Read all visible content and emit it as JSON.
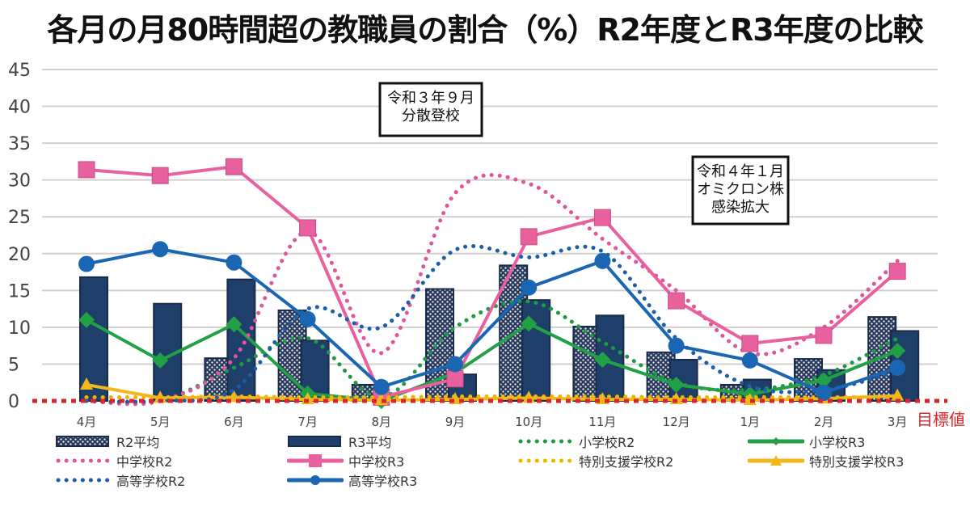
{
  "title": "各月の月80時間超の教職員の割合（%）R2年度とR3年度の比較",
  "chart_data": {
    "type": "bar+line",
    "title": "各月の月80時間超の教職員の割合（%）R2年度とR3年度の比較",
    "xlabel": "",
    "ylabel": "",
    "ylim": [
      0,
      45
    ],
    "yticks": [
      0,
      5,
      10,
      15,
      20,
      25,
      30,
      35,
      40,
      45
    ],
    "grid": true,
    "legend_position": "bottom",
    "categories": [
      "4月",
      "5月",
      "6月",
      "7月",
      "8月",
      "9月",
      "10月",
      "11月",
      "12月",
      "1月",
      "2月",
      "3月"
    ],
    "bars": [
      {
        "name": "R2平均",
        "style": "patterned",
        "color": "#1f3864",
        "values": [
          0,
          0,
          5.8,
          12.3,
          2.2,
          15.2,
          18.4,
          10.1,
          6.6,
          2.2,
          5.7,
          11.4
        ]
      },
      {
        "name": "R3平均",
        "style": "solid",
        "color": "#1f3f6b",
        "values": [
          16.8,
          13.2,
          16.5,
          8.2,
          0,
          3.6,
          13.7,
          11.6,
          5.6,
          2.9,
          4.2,
          9.5
        ]
      }
    ],
    "series": [
      {
        "name": "小学校R2",
        "style": "dotted",
        "color": "#1e9a44",
        "values": [
          0,
          0,
          4.5,
          8.5,
          0.5,
          10,
          13.5,
          8,
          2.5,
          1.5,
          3.5,
          8.5
        ]
      },
      {
        "name": "小学校R3",
        "style": "solid",
        "marker": "diamond",
        "color": "#22a045",
        "values": [
          11,
          5.5,
          10.4,
          1,
          0,
          3.8,
          10.5,
          5.6,
          2.2,
          0.9,
          2.8,
          6.8
        ]
      },
      {
        "name": "中学校R2",
        "style": "dotted",
        "color": "#e0569a",
        "values": [
          0,
          0,
          5.8,
          23,
          6.5,
          28.2,
          29.5,
          22,
          15,
          6.5,
          10,
          19
        ]
      },
      {
        "name": "中学校R3",
        "style": "solid",
        "marker": "square",
        "color": "#e8609e",
        "values": [
          31.4,
          30.6,
          31.8,
          23.5,
          0.5,
          3,
          22.3,
          24.9,
          13.6,
          7.8,
          8.9,
          17.6
        ]
      },
      {
        "name": "特別支援学校R2",
        "style": "dotted",
        "color": "#f0b400",
        "values": [
          0.5,
          0.5,
          0.6,
          0.5,
          0.5,
          0.6,
          0.6,
          0.6,
          0.5,
          0.5,
          0.5,
          0.5
        ]
      },
      {
        "name": "特別支援学校R3",
        "style": "solid",
        "marker": "triangle",
        "color": "#f2b71a",
        "values": [
          2.2,
          0.4,
          0.5,
          0.2,
          0.1,
          0.2,
          0.4,
          0.2,
          0.2,
          0.1,
          0.3,
          0.7
        ]
      },
      {
        "name": "高等学校R2",
        "style": "dotted",
        "color": "#1b5faa",
        "values": [
          0,
          0,
          1.5,
          12.5,
          10,
          20.5,
          19.5,
          20.3,
          8.5,
          2,
          1.5,
          4
        ]
      },
      {
        "name": "高等学校R3",
        "style": "solid",
        "marker": "circle",
        "color": "#1a66b3",
        "values": [
          18.6,
          20.6,
          18.8,
          11.1,
          1.9,
          5,
          15.4,
          19,
          7.5,
          5.5,
          1.1,
          4.5
        ]
      }
    ],
    "target_line": {
      "label": "目標値",
      "value": 0,
      "color": "#d9262a",
      "style": "dashed"
    },
    "annotations": [
      {
        "text_lines": [
          "令和３年９月",
          "分散登校"
        ],
        "near": "9月"
      },
      {
        "text_lines": [
          "令和４年１月",
          "オミクロン株",
          "感染拡大"
        ],
        "near": "1月"
      }
    ]
  },
  "legend": [
    {
      "label": "R2平均",
      "key": "R2平均"
    },
    {
      "label": "R3平均",
      "key": "R3平均"
    },
    {
      "label": "小学校R2",
      "key": "小学校R2"
    },
    {
      "label": "小学校R3",
      "key": "小学校R3"
    },
    {
      "label": "中学校R2",
      "key": "中学校R2"
    },
    {
      "label": "中学校R3",
      "key": "中学校R3"
    },
    {
      "label": "特別支援学校R2",
      "key": "特別支援学校R2"
    },
    {
      "label": "特別支援学校R3",
      "key": "特別支援学校R3"
    },
    {
      "label": "高等学校R2",
      "key": "高等学校R2"
    },
    {
      "label": "高等学校R3",
      "key": "高等学校R3"
    }
  ]
}
